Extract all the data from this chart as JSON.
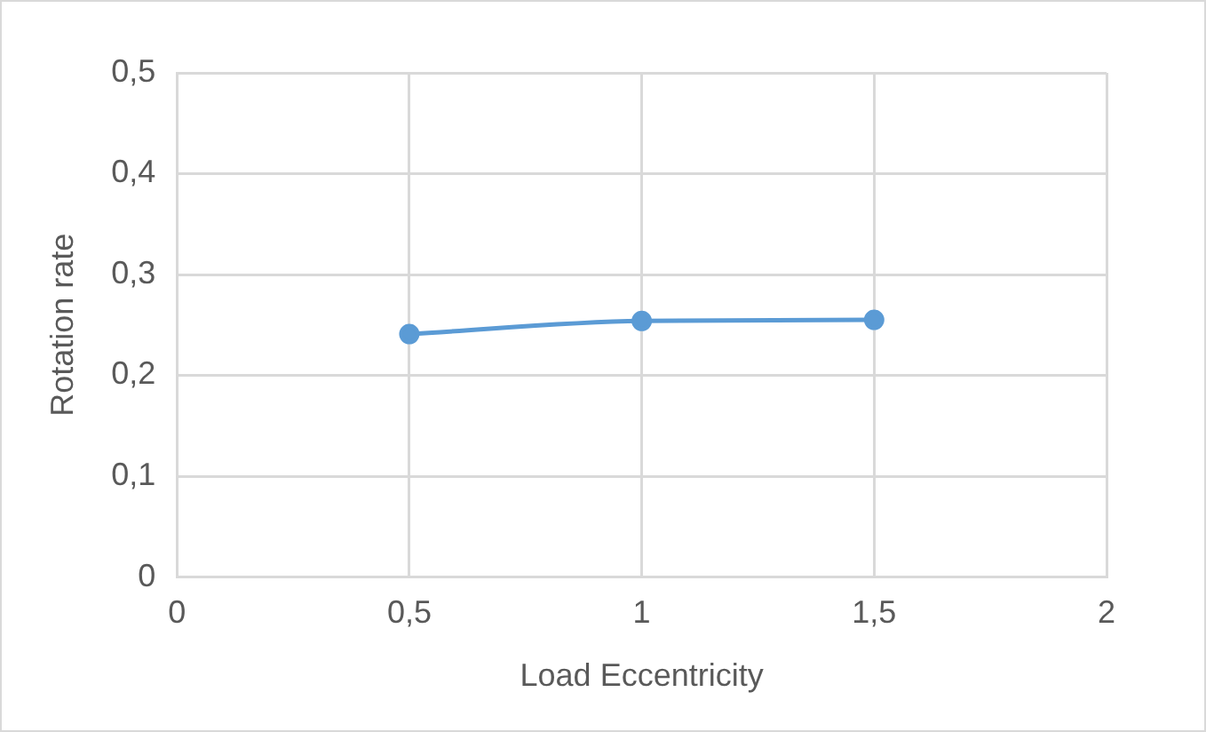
{
  "chart_data": {
    "type": "line",
    "xlabel": "Load Eccentricity",
    "ylabel": "Rotation rate",
    "x": [
      0.5,
      1,
      1.5
    ],
    "series": [
      {
        "color": "#5b9bd5",
        "values": [
          0.241,
          0.254,
          0.255
        ]
      }
    ],
    "xlim": [
      0,
      2
    ],
    "xticks": [
      0,
      {
        "value": 0.5,
        "label": "0,5"
      },
      1,
      {
        "value": 1.5,
        "label": "1,5"
      },
      2
    ],
    "ylim": [
      0,
      0.5
    ],
    "yticks": [
      0,
      {
        "value": 0.1,
        "label": "0,1"
      },
      {
        "value": 0.2,
        "label": "0,2"
      },
      {
        "value": 0.3,
        "label": "0,3"
      },
      {
        "value": 0.4,
        "label": "0,4"
      },
      {
        "value": 0.5,
        "label": "0,5"
      }
    ],
    "grid": true,
    "legend": false,
    "marker": "circle",
    "line_style": "solid"
  }
}
